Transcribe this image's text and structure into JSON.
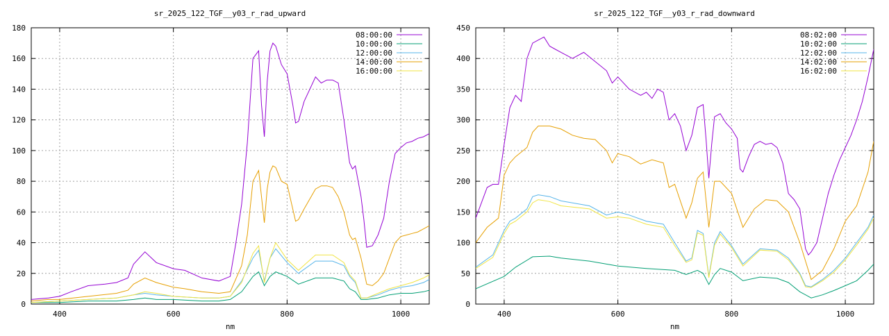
{
  "chart_data": [
    {
      "type": "line",
      "title": "sr_2025_122_TGF__y03_r_rad_upward",
      "xlabel": "nm",
      "ylabel": "",
      "xlim": [
        350,
        1050
      ],
      "ylim": [
        0,
        180
      ],
      "xticks": [
        400,
        600,
        800,
        1000
      ],
      "yticks": [
        0,
        20,
        40,
        60,
        80,
        100,
        120,
        140,
        160,
        180
      ],
      "grid": true,
      "legend": "top-right",
      "series": [
        {
          "name": "08:00:00",
          "color": "#9400d3",
          "x": [
            350,
            380,
            400,
            420,
            450,
            480,
            500,
            520,
            530,
            550,
            570,
            600,
            620,
            650,
            680,
            700,
            710,
            720,
            730,
            740,
            750,
            755,
            760,
            765,
            770,
            775,
            780,
            790,
            800,
            810,
            815,
            820,
            830,
            850,
            860,
            870,
            880,
            890,
            900,
            910,
            915,
            920,
            930,
            935,
            940,
            950,
            960,
            970,
            980,
            990,
            1000,
            1010,
            1020,
            1030,
            1040,
            1050
          ],
          "y": [
            3,
            4,
            5,
            8,
            12,
            13,
            14,
            17,
            26,
            34,
            27,
            23,
            22,
            17,
            15,
            18,
            40,
            65,
            105,
            160,
            165,
            130,
            109,
            145,
            165,
            170,
            168,
            156,
            150,
            130,
            118,
            119,
            132,
            148,
            144,
            146,
            146,
            144,
            120,
            92,
            88,
            90,
            70,
            55,
            37,
            38,
            45,
            56,
            80,
            98,
            102,
            105,
            106,
            108,
            109,
            111
          ]
        },
        {
          "name": "10:00:00",
          "color": "#009e73",
          "x": [
            350,
            400,
            450,
            500,
            530,
            550,
            570,
            600,
            650,
            680,
            700,
            720,
            740,
            750,
            760,
            770,
            780,
            800,
            820,
            850,
            880,
            900,
            910,
            920,
            930,
            940,
            960,
            980,
            1000,
            1020,
            1040,
            1050
          ],
          "y": [
            1,
            1,
            2,
            2,
            3,
            4,
            3,
            3,
            2,
            2,
            3,
            8,
            18,
            21,
            12,
            18,
            21,
            18,
            13,
            17,
            17,
            15,
            10,
            8,
            3,
            3,
            4,
            6,
            7,
            7,
            8,
            9
          ]
        },
        {
          "name": "12:00:00",
          "color": "#56b4e9",
          "x": [
            350,
            400,
            450,
            500,
            530,
            550,
            570,
            600,
            650,
            680,
            700,
            720,
            740,
            750,
            760,
            770,
            780,
            800,
            820,
            850,
            880,
            900,
            910,
            920,
            930,
            940,
            960,
            980,
            1000,
            1020,
            1040,
            1050
          ],
          "y": [
            1,
            2,
            3,
            4,
            6,
            7,
            6,
            5,
            4,
            4,
            5,
            15,
            30,
            35,
            15,
            30,
            36,
            27,
            20,
            28,
            28,
            25,
            18,
            14,
            4,
            4,
            6,
            9,
            11,
            12,
            14,
            16
          ]
        },
        {
          "name": "14:00:00",
          "color": "#e69f00",
          "x": [
            350,
            380,
            400,
            450,
            500,
            520,
            530,
            550,
            570,
            600,
            620,
            650,
            680,
            700,
            720,
            730,
            740,
            750,
            755,
            760,
            765,
            770,
            775,
            780,
            790,
            800,
            810,
            815,
            820,
            830,
            850,
            860,
            870,
            880,
            890,
            900,
            910,
            915,
            920,
            930,
            940,
            950,
            960,
            970,
            980,
            990,
            1000,
            1010,
            1020,
            1030,
            1040,
            1050
          ],
          "y": [
            2,
            3,
            3,
            5,
            7,
            9,
            13,
            17,
            14,
            11,
            10,
            8,
            7,
            8,
            25,
            45,
            80,
            87,
            70,
            53,
            75,
            86,
            90,
            89,
            80,
            78,
            62,
            54,
            55,
            62,
            75,
            77,
            77,
            76,
            70,
            60,
            45,
            42,
            43,
            30,
            13,
            12,
            15,
            20,
            30,
            40,
            44,
            45,
            46,
            47,
            49,
            51
          ]
        },
        {
          "name": "16:00:00",
          "color": "#f0e442",
          "x": [
            350,
            400,
            450,
            500,
            530,
            550,
            570,
            600,
            650,
            680,
            700,
            720,
            740,
            750,
            760,
            770,
            780,
            800,
            820,
            850,
            880,
            900,
            910,
            920,
            930,
            940,
            960,
            980,
            1000,
            1020,
            1040,
            1050
          ],
          "y": [
            1,
            2,
            3,
            4,
            6,
            8,
            7,
            5,
            4,
            4,
            5,
            14,
            33,
            38,
            14,
            30,
            40,
            29,
            22,
            32,
            32,
            27,
            19,
            15,
            4,
            4,
            7,
            10,
            12,
            14,
            17,
            19
          ]
        }
      ]
    },
    {
      "type": "line",
      "title": "sr_2025_122_TGF__y03_r_rad_downward",
      "xlabel": "nm",
      "ylabel": "",
      "xlim": [
        350,
        1050
      ],
      "ylim": [
        0,
        450
      ],
      "xticks": [
        400,
        600,
        800,
        1000
      ],
      "yticks": [
        0,
        50,
        100,
        150,
        200,
        250,
        300,
        350,
        400,
        450
      ],
      "grid": true,
      "legend": "top-right",
      "series": [
        {
          "name": "08:02:00",
          "color": "#9400d3",
          "x": [
            350,
            360,
            370,
            380,
            390,
            400,
            410,
            420,
            430,
            440,
            450,
            460,
            470,
            480,
            490,
            500,
            520,
            540,
            560,
            580,
            590,
            600,
            620,
            640,
            650,
            660,
            670,
            680,
            690,
            700,
            710,
            720,
            730,
            740,
            750,
            755,
            760,
            765,
            770,
            780,
            790,
            800,
            810,
            815,
            820,
            830,
            840,
            850,
            860,
            870,
            880,
            890,
            900,
            910,
            920,
            930,
            935,
            940,
            950,
            960,
            970,
            980,
            990,
            1000,
            1010,
            1020,
            1030,
            1040,
            1050
          ],
          "y": [
            140,
            165,
            190,
            195,
            195,
            260,
            320,
            340,
            330,
            400,
            425,
            430,
            435,
            420,
            415,
            410,
            400,
            410,
            395,
            380,
            360,
            370,
            350,
            340,
            345,
            335,
            350,
            345,
            300,
            310,
            290,
            250,
            275,
            320,
            325,
            270,
            205,
            260,
            305,
            310,
            295,
            285,
            270,
            220,
            215,
            240,
            260,
            265,
            260,
            262,
            255,
            230,
            180,
            170,
            155,
            90,
            80,
            85,
            100,
            140,
            180,
            210,
            235,
            255,
            275,
            300,
            330,
            370,
            415
          ]
        },
        {
          "name": "10:02:00",
          "color": "#009e73",
          "x": [
            350,
            400,
            420,
            450,
            480,
            500,
            550,
            600,
            650,
            700,
            720,
            740,
            750,
            760,
            770,
            780,
            800,
            820,
            850,
            880,
            900,
            920,
            930,
            940,
            960,
            980,
            1000,
            1020,
            1040,
            1050
          ],
          "y": [
            25,
            45,
            60,
            77,
            78,
            75,
            70,
            62,
            58,
            55,
            48,
            55,
            50,
            32,
            48,
            58,
            52,
            38,
            44,
            42,
            35,
            20,
            15,
            10,
            15,
            22,
            30,
            38,
            55,
            65
          ]
        },
        {
          "name": "12:02:00",
          "color": "#56b4e9",
          "x": [
            350,
            380,
            400,
            410,
            420,
            440,
            450,
            460,
            480,
            500,
            550,
            580,
            600,
            620,
            650,
            680,
            700,
            720,
            730,
            740,
            750,
            760,
            770,
            780,
            800,
            820,
            850,
            880,
            900,
            920,
            930,
            940,
            960,
            980,
            1000,
            1020,
            1040,
            1050
          ],
          "y": [
            60,
            80,
            120,
            135,
            140,
            155,
            175,
            178,
            175,
            168,
            160,
            145,
            150,
            145,
            135,
            130,
            100,
            70,
            75,
            120,
            115,
            45,
            100,
            118,
            95,
            65,
            90,
            88,
            75,
            50,
            30,
            28,
            40,
            55,
            75,
            100,
            125,
            145
          ]
        },
        {
          "name": "14:02:00",
          "color": "#e69f00",
          "x": [
            350,
            370,
            390,
            400,
            410,
            420,
            440,
            450,
            460,
            480,
            500,
            520,
            540,
            560,
            580,
            590,
            600,
            620,
            640,
            660,
            680,
            690,
            700,
            720,
            730,
            740,
            750,
            760,
            770,
            780,
            800,
            820,
            840,
            860,
            880,
            900,
            920,
            930,
            940,
            960,
            980,
            1000,
            1020,
            1040,
            1050
          ],
          "y": [
            100,
            125,
            140,
            210,
            230,
            240,
            255,
            280,
            290,
            290,
            285,
            275,
            270,
            268,
            250,
            230,
            245,
            240,
            228,
            235,
            230,
            190,
            195,
            140,
            165,
            205,
            215,
            125,
            200,
            200,
            180,
            125,
            155,
            170,
            168,
            150,
            100,
            70,
            40,
            55,
            90,
            135,
            160,
            215,
            265
          ]
        },
        {
          "name": "16:02:00",
          "color": "#f0e442",
          "x": [
            350,
            380,
            400,
            410,
            420,
            440,
            450,
            460,
            480,
            500,
            550,
            580,
            600,
            620,
            650,
            680,
            700,
            720,
            730,
            740,
            750,
            760,
            770,
            780,
            800,
            820,
            850,
            880,
            900,
            920,
            930,
            940,
            960,
            980,
            1000,
            1020,
            1040,
            1050
          ],
          "y": [
            58,
            76,
            115,
            130,
            135,
            150,
            165,
            170,
            167,
            160,
            155,
            140,
            142,
            140,
            130,
            125,
            95,
            68,
            72,
            116,
            112,
            43,
            96,
            114,
            92,
            62,
            88,
            86,
            72,
            48,
            28,
            27,
            38,
            52,
            72,
            96,
            122,
            140
          ]
        }
      ]
    }
  ]
}
